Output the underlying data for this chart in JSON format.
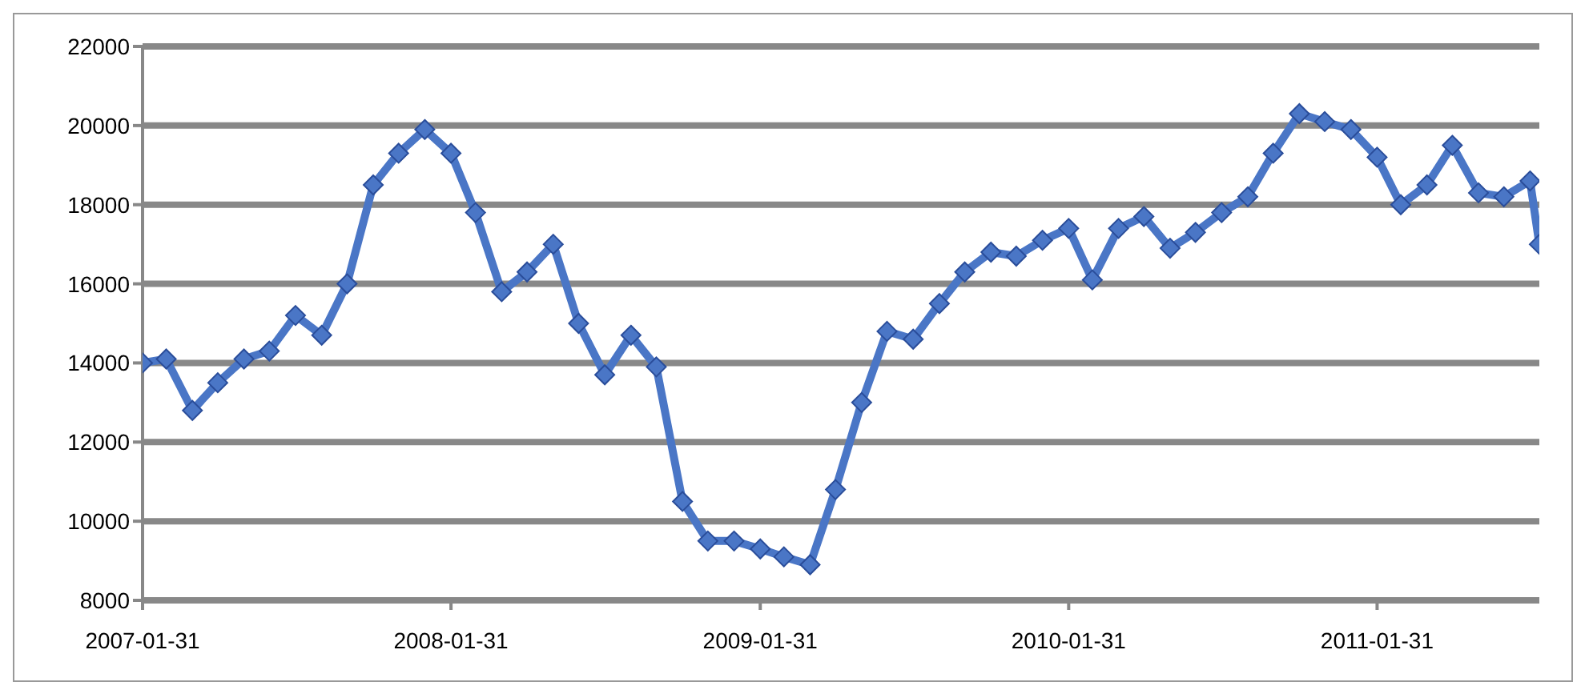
{
  "chart_data": {
    "type": "line",
    "x": [
      "2007-01-31",
      "2007-02-28",
      "2007-03-31",
      "2007-04-30",
      "2007-05-31",
      "2007-06-30",
      "2007-07-31",
      "2007-08-31",
      "2007-09-30",
      "2007-10-31",
      "2007-11-30",
      "2007-12-31",
      "2008-01-31",
      "2008-02-29",
      "2008-03-31",
      "2008-04-30",
      "2008-05-31",
      "2008-06-30",
      "2008-07-31",
      "2008-08-31",
      "2008-09-30",
      "2008-10-31",
      "2008-11-30",
      "2008-12-31",
      "2009-01-31",
      "2009-02-28",
      "2009-03-31",
      "2009-04-30",
      "2009-05-31",
      "2009-06-30",
      "2009-07-31",
      "2009-08-31",
      "2009-09-30",
      "2009-10-31",
      "2009-11-30",
      "2009-12-31",
      "2010-01-31",
      "2010-02-28",
      "2010-03-31",
      "2010-04-30",
      "2010-05-31",
      "2010-06-30",
      "2010-07-31",
      "2010-08-31",
      "2010-09-30",
      "2010-10-31",
      "2010-11-30",
      "2010-12-31",
      "2011-01-31",
      "2011-02-28",
      "2011-03-31",
      "2011-04-30",
      "2011-05-31",
      "2011-06-30",
      "2011-07-31",
      "2011-08-11"
    ],
    "series": [
      {
        "color": "#4a76c6",
        "values": [
          14000,
          14100,
          12800,
          13500,
          14100,
          14300,
          15200,
          14700,
          16000,
          18500,
          19300,
          19900,
          19300,
          17800,
          15800,
          16300,
          17000,
          15000,
          13700,
          14700,
          13900,
          10500,
          9500,
          9500,
          9300,
          9100,
          8900,
          10800,
          13000,
          14800,
          14600,
          15500,
          16300,
          16800,
          16700,
          17100,
          17400,
          16100,
          17400,
          17700,
          16900,
          17300,
          17800,
          18200,
          19300,
          20300,
          20100,
          19900,
          19200,
          18000,
          18500,
          19500,
          18300,
          18200,
          18600,
          17000
        ]
      }
    ],
    "xlim": [
      "2007-01-31",
      "2011-08-11"
    ],
    "xticks": [
      "2007-01-31",
      "2008-01-31",
      "2009-01-31",
      "2010-01-31",
      "2011-01-31"
    ],
    "ylim": [
      8000,
      22000
    ],
    "yticks": [
      8000,
      10000,
      12000,
      14000,
      16000,
      18000,
      20000,
      22000
    ],
    "grid": "y",
    "legend": false,
    "marker": "diamond",
    "line_style": "solid"
  }
}
